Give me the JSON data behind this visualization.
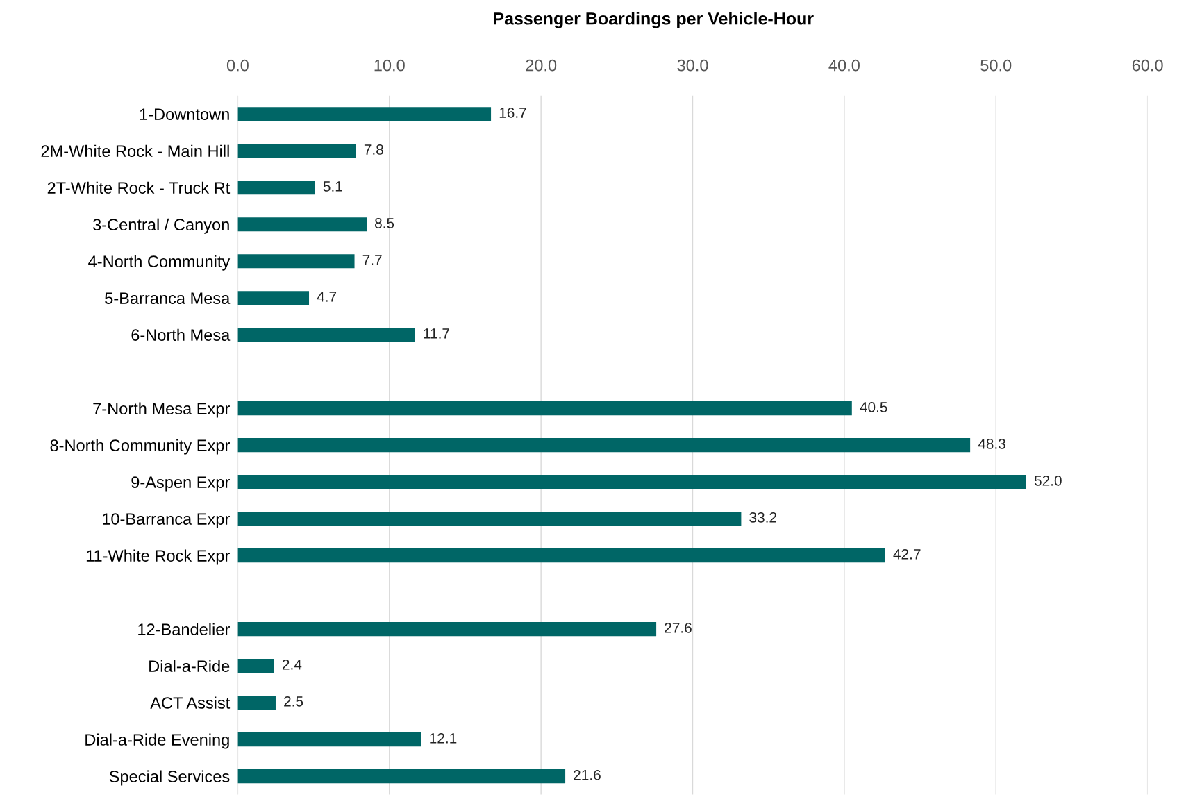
{
  "chart_data": {
    "type": "bar",
    "orientation": "horizontal",
    "title": "Passenger Boardings per Vehicle-Hour",
    "categories": [
      "1-Downtown",
      "2M-White Rock - Main Hill",
      "2T-White Rock - Truck Rt",
      "3-Central / Canyon",
      "4-North Community",
      "5-Barranca Mesa",
      "6-North Mesa",
      null,
      "7-North Mesa Expr",
      "8-North Community Expr",
      "9-Aspen Expr",
      "10-Barranca Expr",
      "11-White Rock Expr",
      null,
      "12-Bandelier",
      "Dial-a-Ride",
      "ACT Assist",
      "Dial-a-Ride Evening",
      "Special Services"
    ],
    "values": [
      16.7,
      7.8,
      5.1,
      8.5,
      7.7,
      4.7,
      11.7,
      null,
      40.5,
      48.3,
      52.0,
      33.2,
      42.7,
      null,
      27.6,
      2.4,
      2.5,
      12.1,
      21.6
    ],
    "value_labels": [
      "16.7",
      "7.8",
      "5.1",
      "8.5",
      "7.7",
      "4.7",
      "11.7",
      null,
      "40.5",
      "48.3",
      "52.0",
      "33.2",
      "42.7",
      null,
      "27.6",
      "2.4",
      "2.5",
      "12.1",
      "21.6"
    ],
    "color": "#006666",
    "xlim": [
      0,
      60
    ],
    "xticks": [
      {
        "value": 0,
        "label": "0.0"
      },
      {
        "value": 10,
        "label": "10.0"
      },
      {
        "value": 20,
        "label": "20.0"
      },
      {
        "value": 30,
        "label": "30.0"
      },
      {
        "value": 40,
        "label": "40.0"
      },
      {
        "value": 50,
        "label": "50.0"
      },
      {
        "value": 60,
        "label": "60.0"
      }
    ],
    "grid": "x"
  }
}
